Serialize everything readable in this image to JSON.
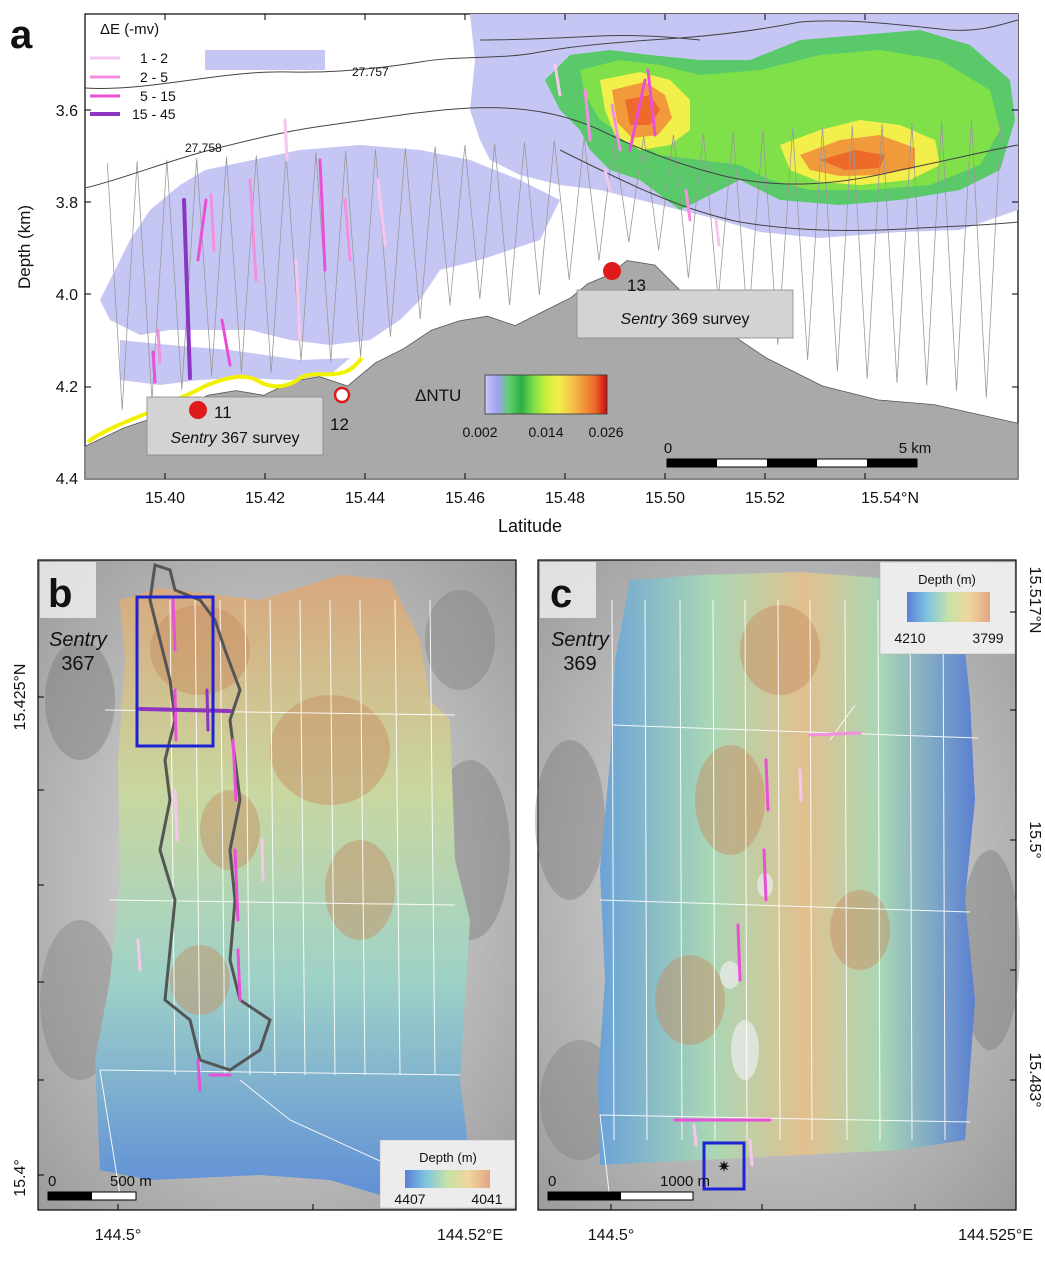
{
  "panel_a": {
    "letter": "a",
    "xlabel": "Latitude",
    "ylabel": "Depth (km)",
    "x_ticks": [
      "15.40",
      "15.42",
      "15.44",
      "15.46",
      "15.48",
      "15.50",
      "15.52",
      "15.54°N"
    ],
    "y_ticks": [
      "3.6",
      "3.8",
      "4.0",
      "4.2",
      "4.4"
    ],
    "legend_title": "ΔE (-mv)",
    "legend_items": [
      {
        "label": "1 - 2",
        "color": "#f7c6ec"
      },
      {
        "label": "2 - 5",
        "color": "#f48fdf"
      },
      {
        "label": "5 - 15",
        "color": "#ea4fd8"
      },
      {
        "label": "15 - 45",
        "color": "#8b35c1"
      }
    ],
    "contour_labels": [
      "27.757",
      "27.758"
    ],
    "sites": [
      {
        "label": "11",
        "type": "filled"
      },
      {
        "label": "12",
        "type": "open"
      },
      {
        "label": "13",
        "type": "filled"
      }
    ],
    "survey_label_367": {
      "italic": "Sentry",
      "rest": " 367 survey"
    },
    "survey_label_369": {
      "italic": "Sentry",
      "rest": " 369 survey"
    },
    "colorbar_title": "ΔNTU",
    "colorbar_ticks": [
      "0.002",
      "0.014",
      "0.026"
    ],
    "colorbar_colors": [
      "#c8c8f5",
      "#a0a0f0",
      "#5ccf6e",
      "#2fae45",
      "#7fe04a",
      "#c8ee3a",
      "#f2ef4a",
      "#f4c84a",
      "#f19a3b",
      "#ee6a2a",
      "#e0301e",
      "#c80a10"
    ],
    "scalebar_left": "0",
    "scalebar_right": "5 km"
  },
  "panel_b": {
    "letter": "b",
    "title_italic": "Sentry",
    "title_num": "367",
    "x_ticks": [
      "144.5°",
      "144.52°E"
    ],
    "y_ticks": [
      "15.425°N",
      "15.4°"
    ],
    "depth_title": "Depth (m)",
    "depth_min": "4407",
    "depth_max": "4041",
    "scale_left": "0",
    "scale_right": "500 m"
  },
  "panel_c": {
    "letter": "c",
    "title_italic": "Sentry",
    "title_num": "369",
    "x_ticks": [
      "144.5°",
      "144.525°E"
    ],
    "y_ticks": [
      "15.517°N",
      "15.5°",
      "15.483°"
    ],
    "depth_title": "Depth (m)",
    "depth_min": "4210",
    "depth_max": "3799",
    "scale_left": "0",
    "scale_right": "1000 m"
  },
  "chart_data": {
    "type": "area",
    "title": "",
    "xlabel": "Latitude",
    "ylabel": "Depth (km)",
    "xlim": [
      15.388,
      15.555
    ],
    "ylim": [
      4.4,
      3.4
    ],
    "x_ticks": [
      15.4,
      15.42,
      15.44,
      15.46,
      15.48,
      15.5,
      15.52,
      15.54
    ],
    "y_ticks": [
      3.6,
      3.8,
      4.0,
      4.2,
      4.4
    ],
    "seafloor": {
      "x": [
        15.388,
        15.395,
        15.4,
        15.405,
        15.41,
        15.415,
        15.42,
        15.425,
        15.43,
        15.435,
        15.44,
        15.445,
        15.45,
        15.455,
        15.46,
        15.465,
        15.47,
        15.475,
        15.478,
        15.482,
        15.485,
        15.49,
        15.495,
        15.5,
        15.505,
        15.51,
        15.52,
        15.53,
        15.54,
        15.555
      ],
      "y": [
        4.33,
        4.29,
        4.27,
        4.25,
        4.22,
        4.21,
        4.22,
        4.19,
        4.18,
        4.2,
        4.15,
        4.12,
        4.08,
        4.06,
        4.05,
        4.07,
        4.04,
        4.01,
        3.98,
        3.96,
        3.93,
        3.94,
        4.0,
        4.04,
        4.1,
        4.14,
        4.2,
        4.23,
        4.24,
        4.28
      ]
    },
    "plume_sites": [
      {
        "label": "11",
        "x": 15.4075,
        "depth": 4.25
      },
      {
        "label": "12",
        "x": 15.4335,
        "depth": 4.22
      },
      {
        "label": "13",
        "x": 15.4825,
        "depth": 3.95
      }
    ]
  }
}
